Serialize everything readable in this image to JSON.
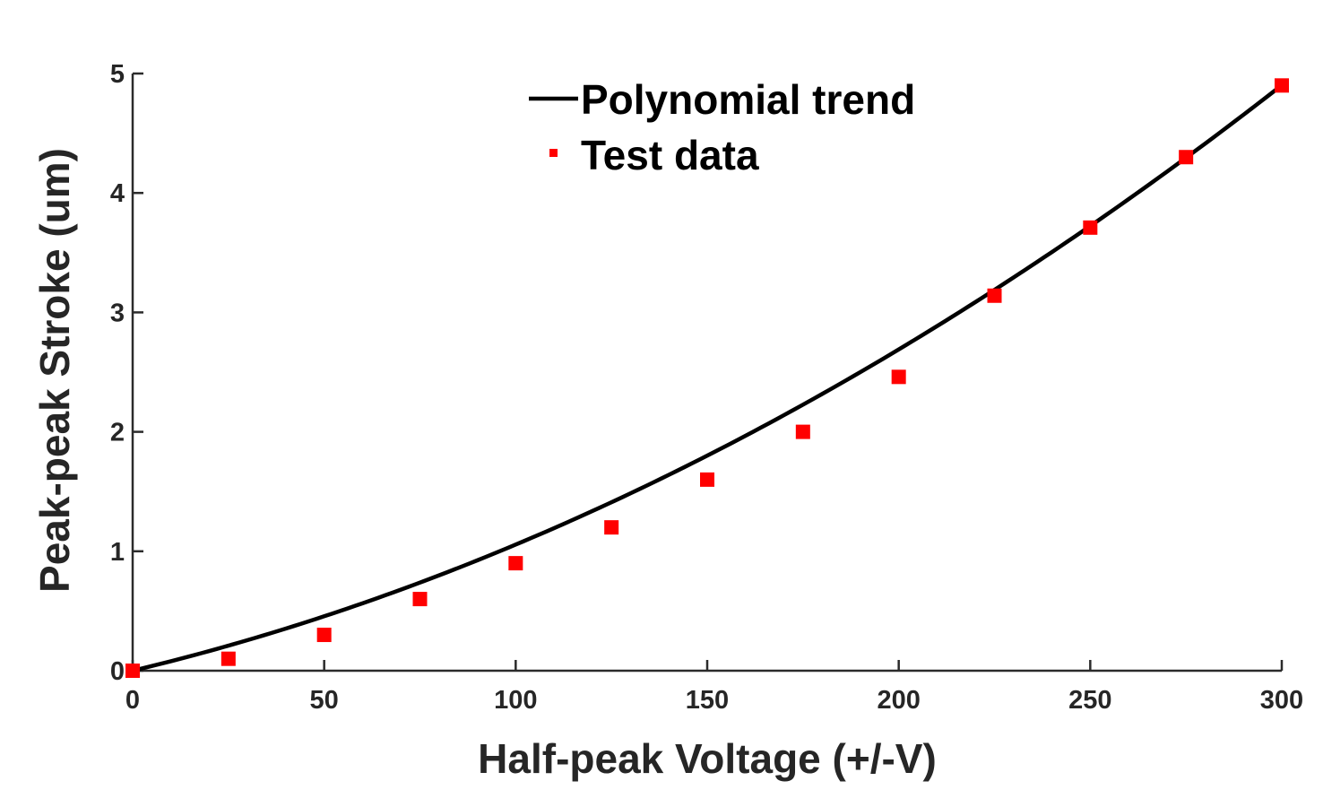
{
  "chart_data": {
    "type": "scatter",
    "title": "",
    "xlabel": "Half-peak Voltage (+/-V)",
    "ylabel": "Peak-peak Stroke (um)",
    "xlim": [
      0,
      300
    ],
    "ylim": [
      0,
      5
    ],
    "xticks": [
      0,
      50,
      100,
      150,
      200,
      250,
      300
    ],
    "yticks": [
      0,
      1,
      2,
      3,
      4,
      5
    ],
    "grid": false,
    "legend_position": "top-center",
    "series": [
      {
        "name": "Polynomial trend",
        "kind": "line",
        "color": "#000000",
        "coefficients": {
          "a": 2.89e-05,
          "b": 0.00767,
          "c": 0.0
        },
        "x": [
          0,
          25,
          50,
          75,
          100,
          125,
          150,
          175,
          200,
          225,
          250,
          275,
          300
        ],
        "y": [
          0.0,
          0.21,
          0.46,
          0.74,
          1.06,
          1.41,
          1.8,
          2.23,
          2.69,
          3.19,
          3.72,
          4.29,
          4.9
        ]
      },
      {
        "name": "Test data",
        "kind": "marker",
        "marker": "square",
        "color": "#ff0000",
        "x": [
          0,
          25,
          50,
          75,
          100,
          125,
          150,
          175,
          200,
          225,
          250,
          275,
          300
        ],
        "y": [
          0.0,
          0.1,
          0.3,
          0.6,
          0.9,
          1.2,
          1.6,
          2.0,
          2.46,
          3.14,
          3.71,
          4.3,
          4.9
        ]
      }
    ]
  }
}
